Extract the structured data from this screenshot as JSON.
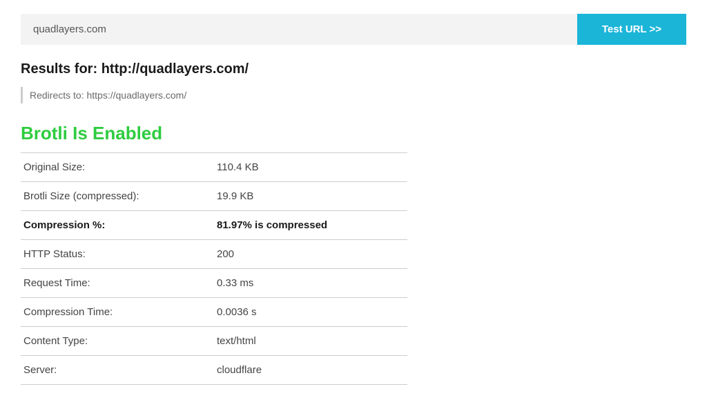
{
  "search": {
    "value": "quadlayers.com",
    "button_label": "Test URL >>"
  },
  "results": {
    "header_prefix": "Results for: ",
    "tested_url": "http://quadlayers.com/",
    "redirect_prefix": "Redirects to: ",
    "redirect_url": "https://quadlayers.com/"
  },
  "status": {
    "heading": "Brotli Is Enabled",
    "color": "#2ecc40"
  },
  "table": {
    "rows": [
      {
        "label": "Original Size:",
        "value": "110.4 KB",
        "bold": false
      },
      {
        "label": "Brotli Size (compressed):",
        "value": "19.9 KB",
        "bold": false
      },
      {
        "label": "Compression %:",
        "value": "81.97% is compressed",
        "bold": true
      },
      {
        "label": "HTTP Status:",
        "value": "200",
        "bold": false
      },
      {
        "label": "Request Time:",
        "value": "0.33 ms",
        "bold": false
      },
      {
        "label": "Compression Time:",
        "value": "0.0036 s",
        "bold": false
      },
      {
        "label": "Content Type:",
        "value": "text/html",
        "bold": false
      },
      {
        "label": "Server:",
        "value": "cloudflare",
        "bold": false
      }
    ]
  },
  "colors": {
    "button_bg": "#1bb5d8",
    "input_bg": "#f3f3f3",
    "border": "#cccccc",
    "text": "#444444"
  }
}
